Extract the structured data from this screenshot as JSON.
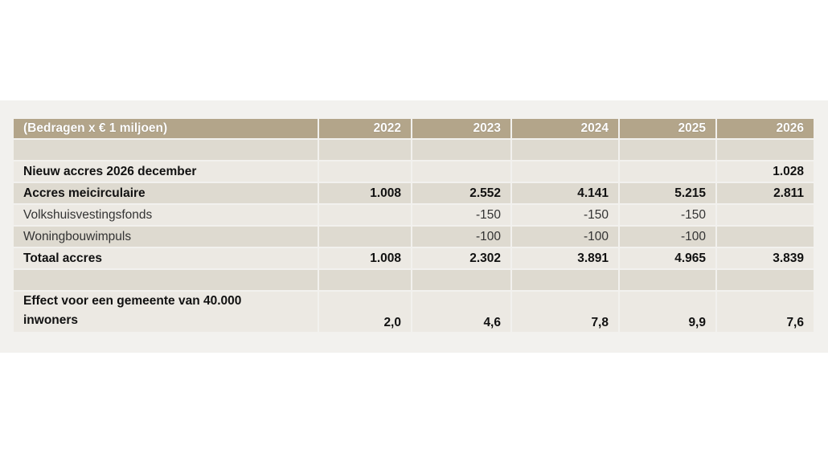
{
  "table": {
    "header": [
      "(Bedragen x € 1 miljoen)",
      "2022",
      "2023",
      "2024",
      "2025",
      "2026"
    ],
    "rows": [
      {
        "label": "",
        "values": [
          "",
          "",
          "",
          "",
          ""
        ]
      },
      {
        "label": "Nieuw accres 2026 december",
        "values": [
          "",
          "",
          "",
          "",
          "1.028"
        ]
      },
      {
        "label": "Accres meicirculaire",
        "values": [
          "1.008",
          "2.552",
          "4.141",
          "5.215",
          "2.811"
        ]
      },
      {
        "label": "Volkshuisvestingsfonds",
        "values": [
          "",
          "-150",
          "-150",
          "-150",
          ""
        ]
      },
      {
        "label": "Woningbouwimpuls",
        "values": [
          "",
          "-100",
          "-100",
          "-100",
          ""
        ]
      },
      {
        "label": "Totaal accres",
        "values": [
          "1.008",
          "2.302",
          "3.891",
          "4.965",
          "3.839"
        ]
      },
      {
        "label": "",
        "values": [
          "",
          "",
          "",
          "",
          ""
        ]
      },
      {
        "label_line1": "Effect voor een gemeente van 40.000",
        "label_line2": "inwoners",
        "values": [
          "2,0",
          "4,6",
          "7,8",
          "9,9",
          "7,6"
        ]
      }
    ]
  },
  "colors": {
    "header_bg": "#b3a58a",
    "row_light": "#ece9e3",
    "row_dark": "#dedad0",
    "panel_bg": "#f2f1ee"
  }
}
